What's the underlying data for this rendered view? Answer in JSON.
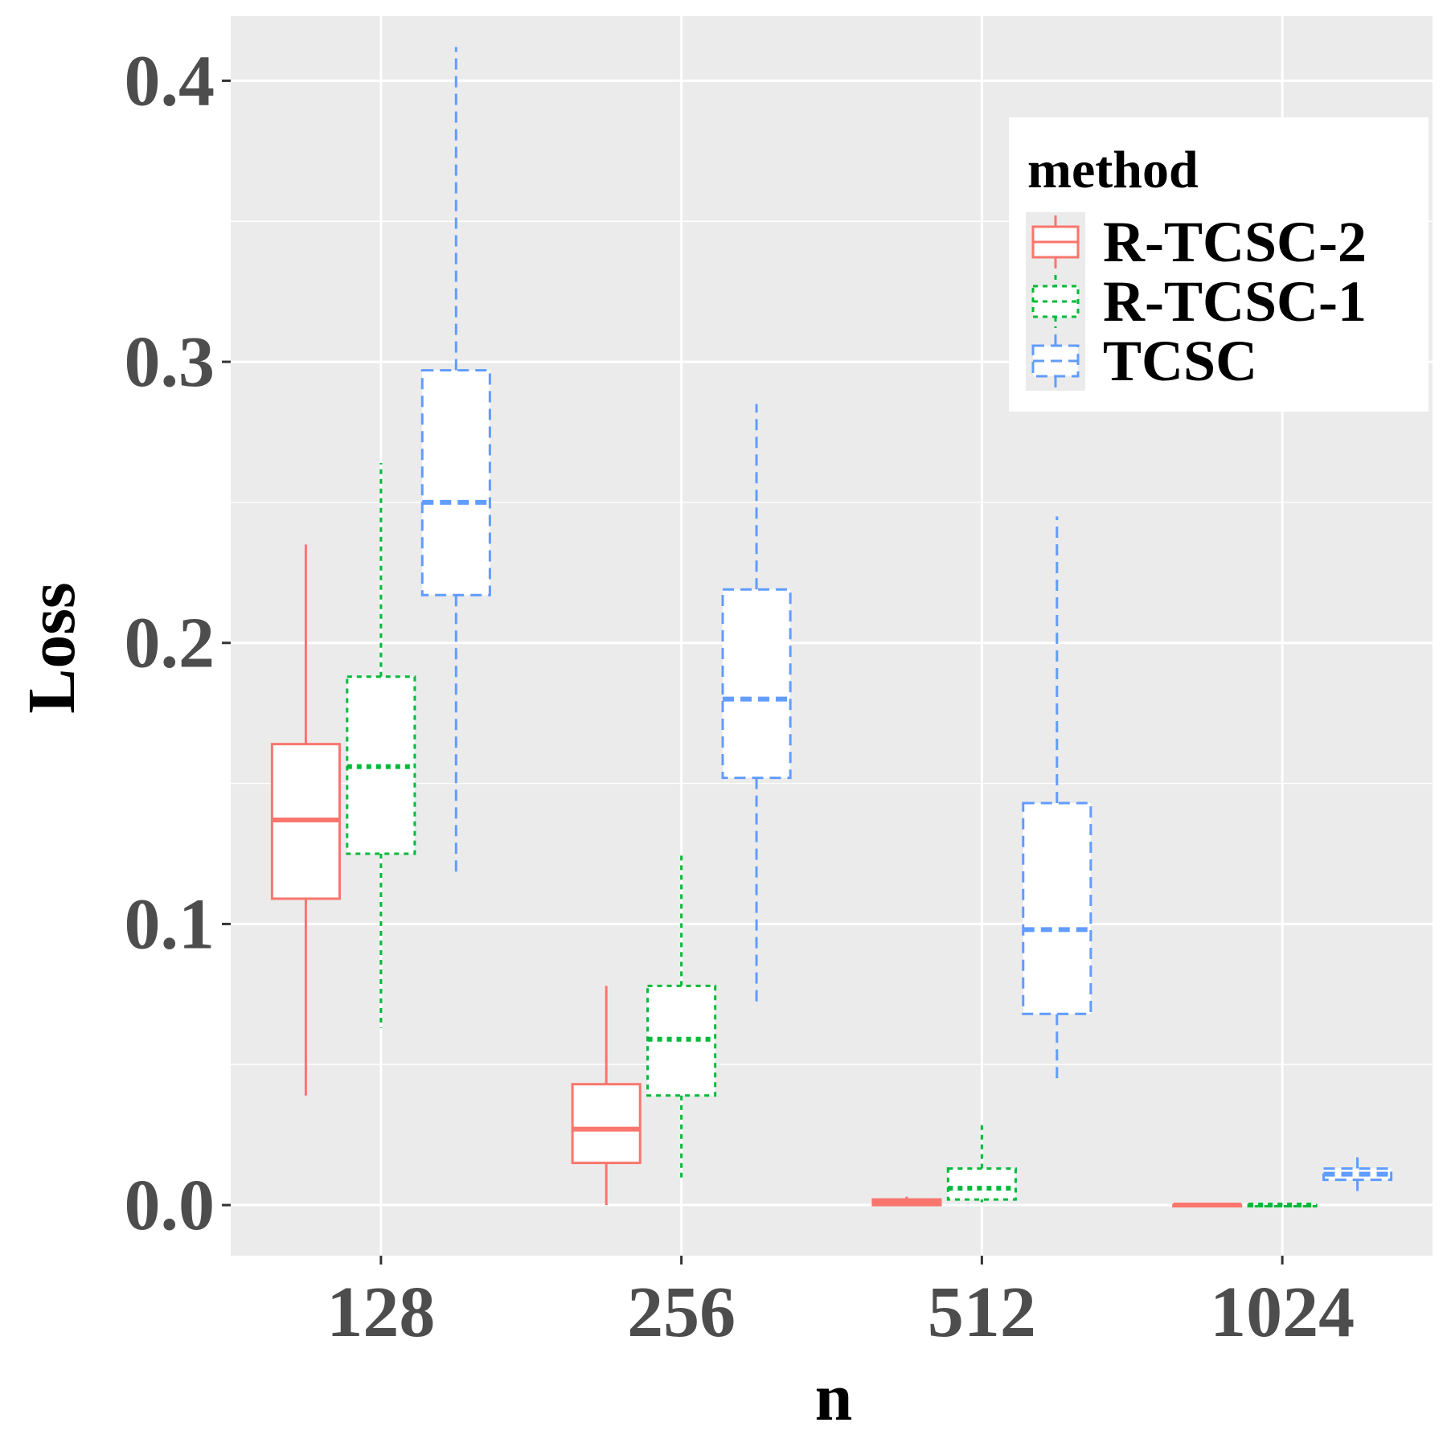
{
  "chart_data": {
    "type": "boxplot",
    "xlabel": "n",
    "ylabel": "Loss",
    "categories": [
      "128",
      "256",
      "512",
      "1024"
    ],
    "ylim": [
      -0.018,
      0.423
    ],
    "yticks": [
      0.0,
      0.1,
      0.2,
      0.3,
      0.4
    ],
    "ytick_labels": [
      "0.0",
      "0.1",
      "0.2",
      "0.3",
      "0.4"
    ],
    "grid": true,
    "legend": {
      "title": "method",
      "placement": "top-right",
      "entries": [
        "R-TCSC-2",
        "R-TCSC-1",
        "TCSC"
      ]
    },
    "series": [
      {
        "name": "R-TCSC-2",
        "color": "#F8766D",
        "dash": "solid",
        "boxes": [
          {
            "whisker_low": 0.039,
            "q1": 0.109,
            "median": 0.137,
            "q3": 0.164,
            "whisker_high": 0.235
          },
          {
            "whisker_low": 0.0,
            "q1": 0.015,
            "median": 0.027,
            "q3": 0.043,
            "whisker_high": 0.078
          },
          {
            "whisker_low": 0.0,
            "q1": 0.0,
            "median": 0.001,
            "q3": 0.002,
            "whisker_high": 0.003
          },
          {
            "whisker_low": 0.0,
            "q1": 0.0,
            "median": 0.0,
            "q3": 0.0,
            "whisker_high": 0.0
          }
        ]
      },
      {
        "name": "R-TCSC-1",
        "color": "#00BA38",
        "dash": "dotted",
        "boxes": [
          {
            "whisker_low": 0.063,
            "q1": 0.125,
            "median": 0.156,
            "q3": 0.188,
            "whisker_high": 0.264
          },
          {
            "whisker_low": 0.009,
            "q1": 0.039,
            "median": 0.059,
            "q3": 0.078,
            "whisker_high": 0.126
          },
          {
            "whisker_low": 0.001,
            "q1": 0.002,
            "median": 0.006,
            "q3": 0.013,
            "whisker_high": 0.029
          },
          {
            "whisker_low": 0.0,
            "q1": 0.0,
            "median": 0.0,
            "q3": 0.0,
            "whisker_high": 0.0
          }
        ]
      },
      {
        "name": "TCSC",
        "color": "#619CFF",
        "dash": "dashed",
        "boxes": [
          {
            "whisker_low": 0.117,
            "q1": 0.217,
            "median": 0.25,
            "q3": 0.297,
            "whisker_high": 0.412
          },
          {
            "whisker_low": 0.071,
            "q1": 0.152,
            "median": 0.18,
            "q3": 0.219,
            "whisker_high": 0.285
          },
          {
            "whisker_low": 0.043,
            "q1": 0.068,
            "median": 0.098,
            "q3": 0.143,
            "whisker_high": 0.245
          },
          {
            "whisker_low": 0.004,
            "q1": 0.009,
            "median": 0.011,
            "q3": 0.013,
            "whisker_high": 0.018
          }
        ]
      }
    ]
  }
}
